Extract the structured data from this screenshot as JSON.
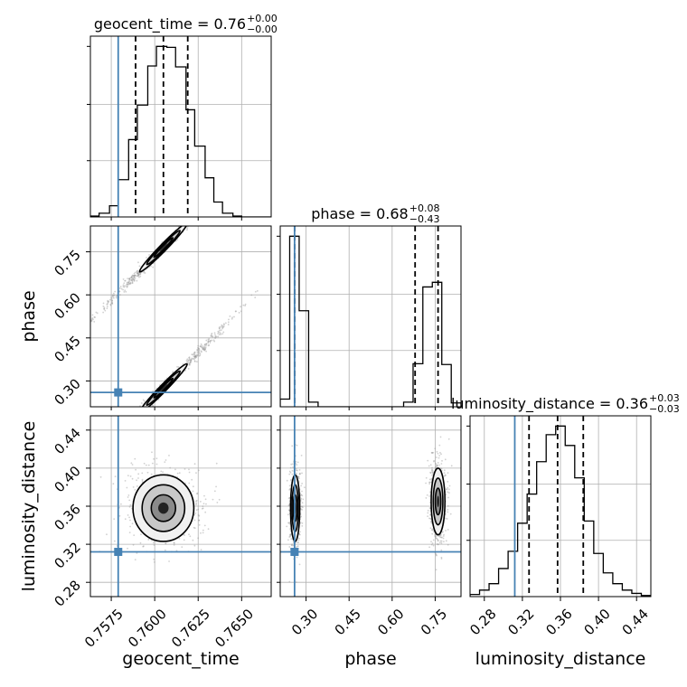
{
  "chart_data": {
    "type": "corner",
    "parameters": [
      "geocent_time",
      "phase",
      "luminosity_distance"
    ],
    "injection": {
      "geocent_time": 0.7579,
      "phase": 0.26,
      "luminosity_distance": 0.312
    },
    "grid": true,
    "colors": {
      "injection": "#4682b4",
      "hist": "#000000",
      "grid": "#b0b0b0",
      "scatter": "#9a9a9a"
    },
    "titles": [
      {
        "param": "geocent_time",
        "text": "geocent_time = 0.76",
        "sup": "+0.00",
        "sub": "−0.00"
      },
      {
        "param": "phase",
        "text": "phase = 0.68",
        "sup": "+0.08",
        "sub": "−0.43"
      },
      {
        "param": "luminosity_distance",
        "text": "luminosity_distance = 0.36",
        "sup": "+0.03",
        "sub": "−0.03"
      }
    ],
    "axes": {
      "geocent_time": {
        "label": "geocent_time",
        "range": [
          0.7563,
          0.7667
        ],
        "ticks": [
          0.7575,
          0.76,
          0.7625,
          0.765
        ],
        "tick_labels": [
          "0.7575",
          "0.7600",
          "0.7625",
          "0.7650"
        ]
      },
      "phase": {
        "label": "phase",
        "range": [
          0.21,
          0.84
        ],
        "ticks": [
          0.3,
          0.45,
          0.6,
          0.75
        ],
        "tick_labels": [
          "0.30",
          "0.45",
          "0.60",
          "0.75"
        ]
      },
      "luminosity_distance": {
        "label": "luminosity_distance",
        "range": [
          0.265,
          0.455
        ],
        "ticks": [
          0.28,
          0.32,
          0.36,
          0.4,
          0.44
        ],
        "tick_labels": [
          "0.28",
          "0.32",
          "0.36",
          "0.40",
          "0.44"
        ]
      }
    },
    "quantiles": {
      "geocent_time": [
        0.7589,
        0.7605,
        0.7619
      ],
      "phase": [
        0.26,
        0.68,
        0.76
      ],
      "luminosity_distance": [
        0.327,
        0.357,
        0.384
      ]
    },
    "histograms": {
      "geocent_time": {
        "edges": [
          0.7563,
          0.7568,
          0.7574,
          0.7579,
          0.7585,
          0.759,
          0.7596,
          0.7601,
          0.7607,
          0.7612,
          0.7618,
          0.7623,
          0.7629,
          0.7634,
          0.7639,
          0.7645,
          0.765,
          0.7656,
          0.7661,
          0.7667
        ],
        "counts": [
          1,
          4,
          12,
          40,
          83,
          120,
          162,
          183,
          182,
          161,
          115,
          76,
          42,
          16,
          4,
          1,
          0,
          0,
          0
        ]
      },
      "phase": {
        "edges": [
          0.21,
          0.243,
          0.276,
          0.309,
          0.342,
          0.376,
          0.409,
          0.442,
          0.475,
          0.508,
          0.541,
          0.574,
          0.607,
          0.64,
          0.673,
          0.707,
          0.74,
          0.773,
          0.806,
          0.84
        ],
        "counts": [
          10,
          222,
          125,
          6,
          0,
          0,
          0,
          0,
          0,
          0,
          0,
          0,
          0,
          6,
          56,
          156,
          162,
          55,
          5
        ]
      },
      "luminosity_distance": {
        "edges": [
          0.265,
          0.275,
          0.285,
          0.295,
          0.305,
          0.315,
          0.325,
          0.335,
          0.345,
          0.355,
          0.365,
          0.375,
          0.385,
          0.395,
          0.405,
          0.415,
          0.425,
          0.435,
          0.445,
          0.455
        ],
        "counts": [
          2,
          6,
          12,
          26,
          42,
          68,
          95,
          125,
          150,
          158,
          140,
          110,
          70,
          40,
          22,
          12,
          6,
          3,
          1
        ]
      }
    },
    "contour_levels": [
      "39%",
      "86%",
      "99%"
    ],
    "clusters": {
      "phase_vs_geocent_time": [
        {
          "center": [
            0.7605,
            0.765
          ],
          "slope": 62,
          "rx": 0.00195,
          "ry": 0.012
        },
        {
          "center": [
            0.7605,
            0.275
          ],
          "slope": 62,
          "rx": 0.00195,
          "ry": 0.012
        }
      ],
      "luminosity_distance_vs_geocent_time": [
        {
          "center": [
            0.7605,
            0.358
          ],
          "rx": 0.00175,
          "ry": 0.035
        }
      ],
      "luminosity_distance_vs_phase": [
        {
          "center": [
            0.262,
            0.358
          ],
          "rx": 0.016,
          "ry": 0.035
        },
        {
          "center": [
            0.76,
            0.365
          ],
          "rx": 0.024,
          "ry": 0.035
        }
      ]
    }
  }
}
